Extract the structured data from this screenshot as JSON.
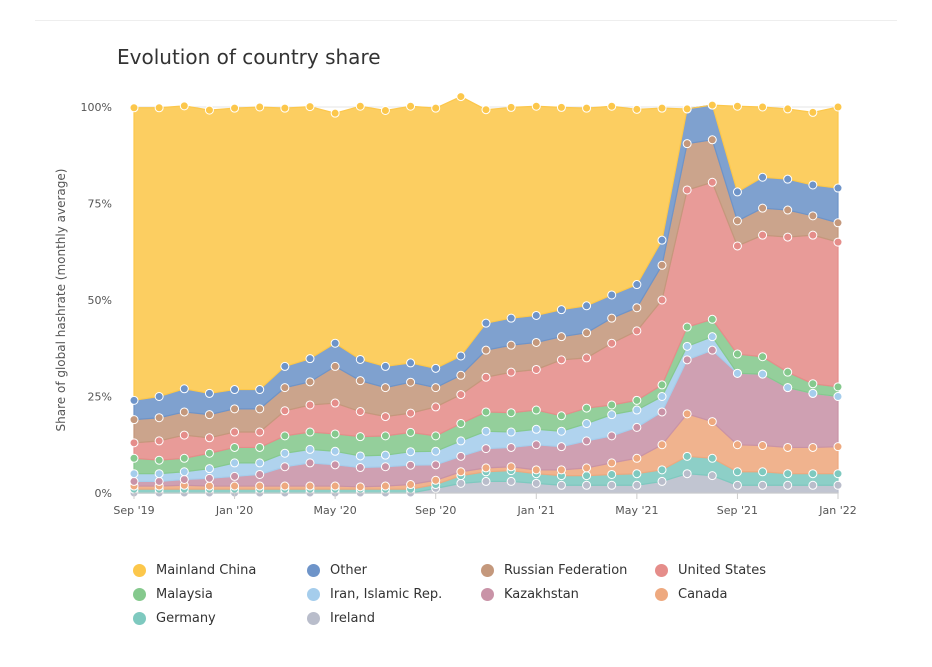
{
  "chart_data": {
    "type": "area",
    "stacked": true,
    "title": "Evolution of country share",
    "xlabel": "",
    "ylabel": "Share of global hashrate (monthly average)",
    "ylim": [
      0,
      100
    ],
    "y_ticks": [
      "0%",
      "25%",
      "50%",
      "75%",
      "100%"
    ],
    "x_ticks": [
      "Sep '19",
      "Jan '20",
      "May '20",
      "Sep '20",
      "Jan '21",
      "May '21",
      "Sep '21",
      "Jan '22"
    ],
    "x": [
      "2019-09",
      "2019-10",
      "2019-11",
      "2019-12",
      "2020-01",
      "2020-02",
      "2020-03",
      "2020-04",
      "2020-05",
      "2020-06",
      "2020-07",
      "2020-08",
      "2020-09",
      "2020-10",
      "2020-11",
      "2020-12",
      "2021-01",
      "2021-02",
      "2021-03",
      "2021-04",
      "2021-05",
      "2021-06",
      "2021-07",
      "2021-08",
      "2021-09",
      "2021-10",
      "2021-11",
      "2021-12",
      "2022-01"
    ],
    "legend_position": "bottom",
    "grid": true,
    "series": [
      {
        "name": "Ireland",
        "color": "#b9bdcb",
        "values": [
          0,
          0,
          0,
          0,
          0,
          0,
          0,
          0,
          0,
          0,
          0,
          0,
          1.2,
          2.5,
          3,
          3,
          2.5,
          2,
          2,
          2,
          2,
          3,
          5,
          4.5,
          2,
          2,
          2,
          2,
          2
        ]
      },
      {
        "name": "Germany",
        "color": "#7ec9bf",
        "values": [
          1,
          1,
          1,
          1,
          1,
          1,
          1,
          1,
          1,
          1,
          1,
          1,
          1,
          2,
          2.5,
          2.8,
          2.5,
          2.5,
          2.5,
          2.8,
          3,
          3,
          4.5,
          4.5,
          3.5,
          3.5,
          3,
          3,
          3
        ]
      },
      {
        "name": "Canada",
        "color": "#eea97f",
        "values": [
          0.8,
          0.8,
          1,
          0.8,
          0.8,
          0.8,
          0.8,
          0.8,
          0.8,
          0.6,
          0.8,
          1.2,
          1.1,
          1,
          1,
          1,
          1,
          1.5,
          2,
          3,
          4,
          6.5,
          11,
          9.5,
          7,
          6.8,
          6.8,
          6.8,
          7
        ]
      },
      {
        "name": "Kazakhstan",
        "color": "#c993a7",
        "values": [
          1.2,
          1.2,
          1.5,
          2,
          2.5,
          3,
          5,
          6,
          5.5,
          5,
          5,
          5,
          4,
          4,
          5,
          5,
          6.5,
          6,
          7,
          7,
          8,
          8.5,
          14,
          18.5,
          18.5,
          18.5,
          15.5,
          14,
          13
        ]
      },
      {
        "name": "Iran, Islamic Rep.",
        "color": "#a5cdec",
        "values": [
          2,
          2,
          2,
          2.5,
          3.5,
          3,
          3.5,
          3.5,
          3.5,
          3,
          3,
          3.5,
          3.5,
          4,
          4.5,
          4,
          4,
          4,
          4.5,
          5.5,
          4.5,
          4,
          3.5,
          3.5,
          0,
          0,
          0,
          0,
          0
        ]
      },
      {
        "name": "Malaysia",
        "color": "#85c98d",
        "values": [
          4,
          3.5,
          3.5,
          4,
          4,
          4,
          4.5,
          4.5,
          4.5,
          5,
          5,
          5,
          4,
          4.5,
          5,
          5,
          5,
          4,
          4,
          2.5,
          2.5,
          3,
          5,
          4.5,
          5,
          4.5,
          4,
          2.5,
          2.5
        ]
      },
      {
        "name": "United States",
        "color": "#e58d8a",
        "values": [
          4,
          5,
          6,
          4,
          4,
          4,
          6.5,
          7,
          8,
          6.5,
          5,
          5,
          7.5,
          7.5,
          9,
          10.5,
          10.5,
          14.5,
          13,
          16,
          18,
          22,
          35.5,
          35.5,
          28,
          31.5,
          35,
          38.5,
          37.5
        ]
      },
      {
        "name": "Russian Federation",
        "color": "#c4987c",
        "values": [
          6,
          6,
          6,
          6,
          6,
          6,
          6,
          6,
          9.5,
          8,
          7.5,
          8,
          5,
          5,
          7,
          7,
          7,
          6,
          6.5,
          6.5,
          6,
          9,
          12,
          11,
          6.5,
          7,
          7,
          5,
          5
        ]
      },
      {
        "name": "Other",
        "color": "#6e94c9",
        "values": [
          5,
          5.5,
          6,
          5.5,
          5,
          5,
          5.5,
          6,
          6,
          5.5,
          5.5,
          5,
          5,
          5,
          7,
          7,
          7,
          7,
          7,
          6,
          6,
          6.5,
          9,
          9,
          7.5,
          8,
          8,
          8,
          9
        ]
      },
      {
        "name": "Mainland China",
        "color": "#fcc74b",
        "values": [
          75.8,
          74.8,
          73.3,
          73.4,
          72.9,
          73.2,
          66.9,
          65.3,
          59.6,
          65.6,
          66.3,
          66.5,
          67.4,
          67.2,
          55.3,
          54.6,
          54.2,
          52.4,
          51.2,
          48.9,
          45.4,
          34.2,
          0,
          0,
          22.2,
          18.2,
          18.2,
          18.8,
          21.0
        ]
      }
    ]
  }
}
